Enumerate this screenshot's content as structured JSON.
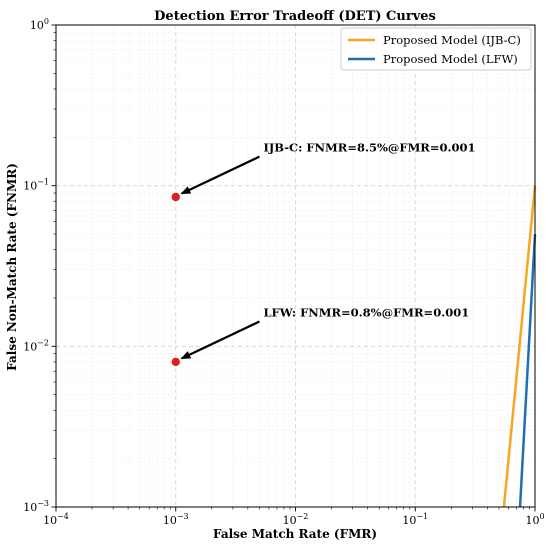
{
  "chart_data": {
    "type": "line",
    "title": "Detection Error Tradeoff (DET) Curves",
    "xlabel": "False Match Rate (FMR)",
    "ylabel": "False Non-Match Rate (FNMR)",
    "xscale": "log",
    "yscale": "log",
    "xlim": [
      0.0001,
      1
    ],
    "ylim": [
      0.001,
      1
    ],
    "grid": true,
    "legend_position": "top-right",
    "x_ticks": [
      {
        "value": 0.0001,
        "base": "10",
        "exp": "−4"
      },
      {
        "value": 0.001,
        "base": "10",
        "exp": "−3"
      },
      {
        "value": 0.01,
        "base": "10",
        "exp": "−2"
      },
      {
        "value": 0.1,
        "base": "10",
        "exp": "−1"
      },
      {
        "value": 1,
        "base": "10",
        "exp": "0"
      }
    ],
    "y_ticks": [
      {
        "value": 0.001,
        "base": "10",
        "exp": "−3"
      },
      {
        "value": 0.01,
        "base": "10",
        "exp": "−2"
      },
      {
        "value": 0.1,
        "base": "10",
        "exp": "−1"
      },
      {
        "value": 1,
        "base": "10",
        "exp": "0"
      }
    ],
    "series": [
      {
        "name": "Proposed Model (IJB-C)",
        "color": "#f5a623",
        "x": [
          0.55,
          1.0
        ],
        "y": [
          0.001,
          0.1
        ]
      },
      {
        "name": "Proposed Model (LFW)",
        "color": "#1f6fb2",
        "x": [
          0.75,
          1.0
        ],
        "y": [
          0.001,
          0.05
        ]
      }
    ],
    "points": [
      {
        "x": 0.001,
        "y": 0.085,
        "color": "#e02020"
      },
      {
        "x": 0.001,
        "y": 0.008,
        "color": "#e02020"
      }
    ],
    "annotations": [
      {
        "text": "IJB-C: FNMR=8.5%@FMR=0.001",
        "x": 0.001,
        "y": 0.085,
        "text_x": 0.005,
        "text_y": 0.17
      },
      {
        "text": "LFW: FNMR=0.8%@FMR=0.001",
        "x": 0.001,
        "y": 0.008,
        "text_x": 0.005,
        "text_y": 0.016
      }
    ]
  }
}
